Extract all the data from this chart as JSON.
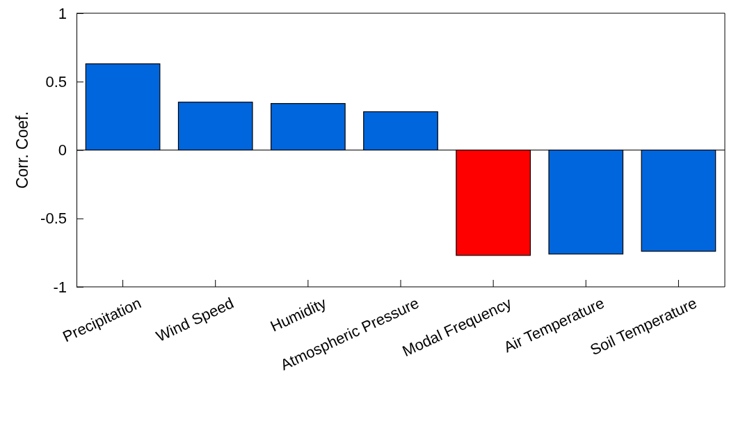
{
  "chart_data": {
    "type": "bar",
    "ylabel": "Corr. Coef.",
    "categories": [
      "Precipitation",
      "Wind Speed",
      "Humidity",
      "Atmospheric Pressure",
      "Modal Frequency",
      "Air Temperature",
      "Soil Temperature"
    ],
    "values": [
      0.63,
      0.35,
      0.34,
      0.28,
      -0.77,
      -0.76,
      -0.74
    ],
    "colors": [
      "#0066dd",
      "#0066dd",
      "#0066dd",
      "#0066dd",
      "#ff0000",
      "#0066dd",
      "#0066dd"
    ],
    "ylim": [
      -1,
      1
    ],
    "yticks": [
      -1,
      -0.5,
      0,
      0.5,
      1
    ]
  }
}
